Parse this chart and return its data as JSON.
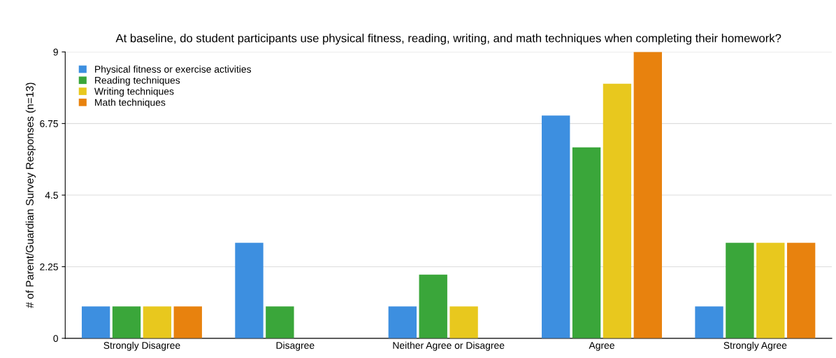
{
  "chart_data": {
    "type": "bar",
    "title": "At baseline, do student participants use physical fitness, reading, writing, and math techniques when completing their homework?",
    "ylabel": "# of Parent/Guardian Survey Responses (n=13)",
    "categories": [
      "Strongly Disagree",
      "Disagree",
      "Neither Agree or Disagree",
      "Agree",
      "Strongly Agree"
    ],
    "series": [
      {
        "name": "Physical fitness or exercise activities",
        "color": "#3d8fe0",
        "values": [
          1,
          3,
          1,
          7,
          1
        ]
      },
      {
        "name": "Reading techniques",
        "color": "#3aa63a",
        "values": [
          1,
          1,
          2,
          6,
          3
        ]
      },
      {
        "name": "Writing techniques",
        "color": "#e8c81e",
        "values": [
          1,
          0,
          1,
          8,
          3
        ]
      },
      {
        "name": "Math techniques",
        "color": "#e8820e",
        "values": [
          1,
          0,
          0,
          9,
          3
        ]
      }
    ],
    "ylim": [
      0,
      9
    ],
    "yticks": [
      0,
      2.25,
      4.5,
      6.75,
      9
    ],
    "grid": "y",
    "legend": "top left"
  }
}
